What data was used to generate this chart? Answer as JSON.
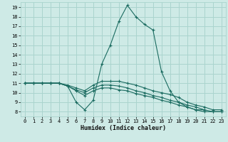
{
  "xlabel": "Humidex (Indice chaleur)",
  "bg_color": "#ceeae6",
  "grid_color": "#aad4ce",
  "line_color": "#1a6b60",
  "x_ticks": [
    0,
    1,
    2,
    3,
    4,
    5,
    6,
    7,
    8,
    9,
    10,
    11,
    12,
    13,
    14,
    15,
    16,
    17,
    18,
    19,
    20,
    21,
    22,
    23
  ],
  "y_ticks": [
    8,
    9,
    10,
    11,
    12,
    13,
    14,
    15,
    16,
    17,
    18,
    19
  ],
  "ylim": [
    7.5,
    19.5
  ],
  "xlim": [
    -0.5,
    23.5
  ],
  "series": [
    {
      "x": [
        0,
        1,
        2,
        3,
        4,
        5,
        6,
        7,
        8,
        9,
        10,
        11,
        12,
        13,
        14,
        15,
        16,
        17,
        18,
        19,
        20,
        21
      ],
      "y": [
        11,
        11,
        11,
        11,
        11,
        10.7,
        9.0,
        8.2,
        9.2,
        13.0,
        15.0,
        17.5,
        19.2,
        18.0,
        17.2,
        16.6,
        12.2,
        10.2,
        9.0,
        8.5,
        8.2,
        8.2
      ]
    },
    {
      "x": [
        0,
        1,
        2,
        3,
        4,
        5,
        6,
        7,
        8,
        9,
        10,
        11,
        12,
        13,
        14,
        15,
        16,
        17,
        18,
        19,
        20,
        21,
        22,
        23
      ],
      "y": [
        11,
        11,
        11,
        11,
        11,
        10.8,
        10.5,
        10.2,
        10.8,
        11.2,
        11.2,
        11.2,
        11.0,
        10.8,
        10.5,
        10.2,
        10.0,
        9.8,
        9.5,
        9.0,
        8.7,
        8.5,
        8.2,
        8.2
      ]
    },
    {
      "x": [
        0,
        1,
        2,
        3,
        4,
        5,
        6,
        7,
        8,
        9,
        10,
        11,
        12,
        13,
        14,
        15,
        16,
        17,
        18,
        19,
        20,
        21,
        22,
        23
      ],
      "y": [
        11,
        11,
        11,
        11,
        11,
        10.7,
        10.3,
        10.0,
        10.5,
        10.8,
        10.8,
        10.7,
        10.5,
        10.2,
        10.0,
        9.7,
        9.5,
        9.2,
        9.0,
        8.7,
        8.5,
        8.2,
        8.0,
        8.0
      ]
    },
    {
      "x": [
        0,
        1,
        2,
        3,
        4,
        5,
        6,
        7,
        8,
        9,
        10,
        11,
        12,
        13,
        14,
        15,
        16,
        17,
        18,
        19,
        20,
        21,
        22,
        23
      ],
      "y": [
        11,
        11,
        11,
        11,
        11,
        10.7,
        10.2,
        9.7,
        10.2,
        10.5,
        10.5,
        10.3,
        10.2,
        9.9,
        9.7,
        9.5,
        9.2,
        9.0,
        8.7,
        8.5,
        8.2,
        8.0,
        8.0,
        8.0
      ]
    }
  ]
}
